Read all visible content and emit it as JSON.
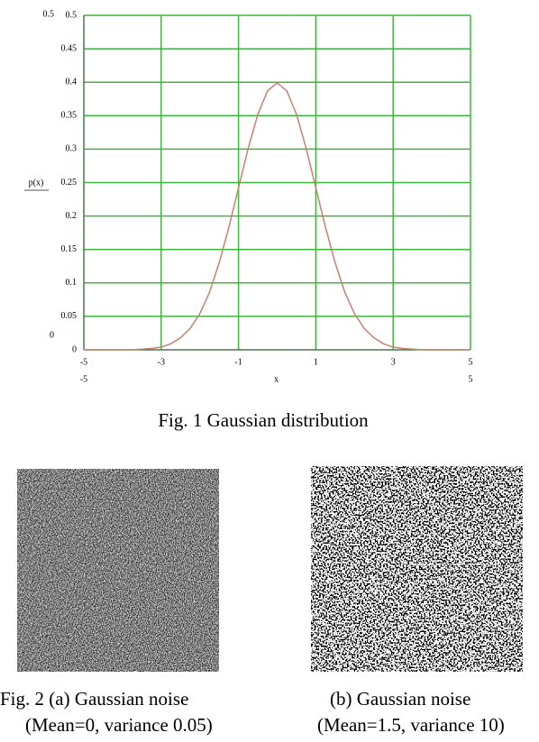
{
  "chart_data": {
    "type": "line",
    "y_label": "p(x)",
    "x_label": "x",
    "color": "#c9806f",
    "grid_color": "#3cb83c",
    "grid": true,
    "x": [
      -5,
      -4.75,
      -4.5,
      -4.25,
      -4,
      -3.75,
      -3.5,
      -3.25,
      -3,
      -2.75,
      -2.5,
      -2.25,
      -2,
      -1.75,
      -1.5,
      -1.25,
      -1,
      -0.75,
      -0.5,
      -0.25,
      0,
      0.25,
      0.5,
      0.75,
      1,
      1.25,
      1.5,
      1.75,
      2,
      2.25,
      2.5,
      2.75,
      3,
      3.25,
      3.5,
      3.75,
      4,
      4.25,
      4.5,
      4.75,
      5
    ],
    "values": [
      0,
      0,
      0,
      0,
      0,
      0,
      0.001,
      0.002,
      0.004,
      0.009,
      0.018,
      0.032,
      0.054,
      0.086,
      0.13,
      0.183,
      0.242,
      0.301,
      0.352,
      0.387,
      0.399,
      0.387,
      0.352,
      0.301,
      0.242,
      0.183,
      0.13,
      0.086,
      0.054,
      0.032,
      0.018,
      0.009,
      0.004,
      0.002,
      0.001,
      0,
      0,
      0,
      0,
      0,
      0
    ],
    "xlim": [
      -5,
      5
    ],
    "ylim": [
      0,
      0.5
    ],
    "xticks": [
      -5,
      -3,
      -1,
      1,
      3,
      5
    ],
    "yticks": [
      0,
      0.05,
      0.1,
      0.15,
      0.2,
      0.25,
      0.3,
      0.35,
      0.4,
      0.45,
      0.5
    ]
  },
  "captions": {
    "fig1": "Fig. 1 Gaussian distribution",
    "fig2a_title": "Fig. 2 (a) Gaussian noise",
    "fig2a_params": "(Mean=0, variance 0.05)",
    "fig2b_title": "(b) Gaussian noise",
    "fig2b_params": "(Mean=1.5, variance 10)"
  }
}
